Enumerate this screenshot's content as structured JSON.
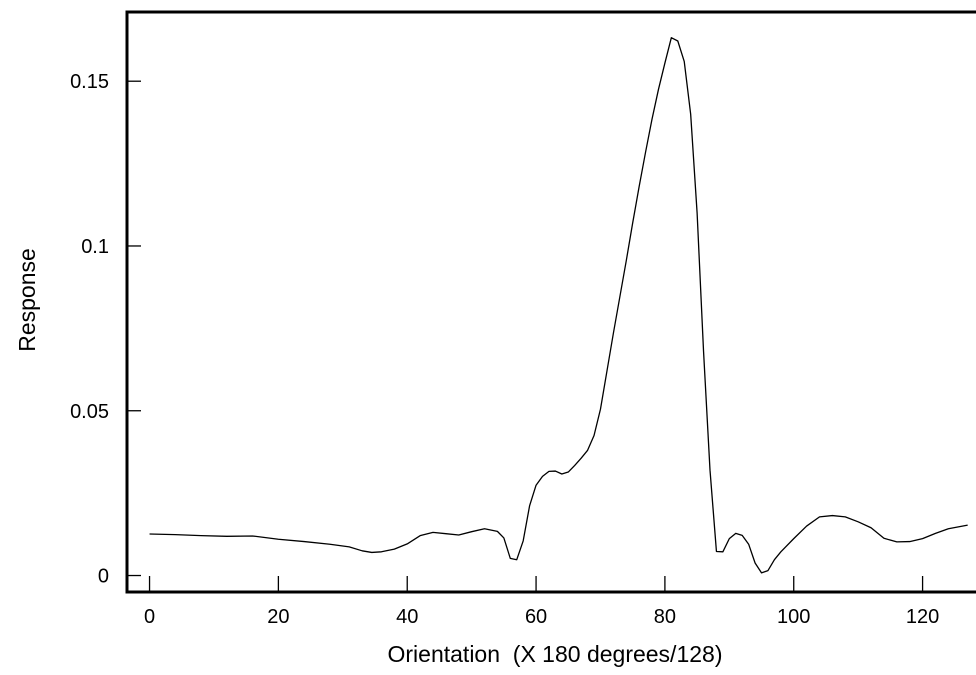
{
  "chart_data": {
    "type": "line",
    "title": "",
    "xlabel": "Orientation  (X 180 degrees/128)",
    "ylabel": "Response",
    "xlim": [
      -3.5,
      130
    ],
    "ylim": [
      -0.005,
      0.171
    ],
    "x_ticks": [
      0,
      20,
      40,
      60,
      80,
      100,
      120
    ],
    "x_tick_labels": [
      "0",
      "20",
      "40",
      "60",
      "80",
      "100",
      "120"
    ],
    "y_ticks": [
      0,
      0.05,
      0.1,
      0.15
    ],
    "y_tick_labels": [
      "0",
      "0.05",
      "0.1",
      "0.15"
    ],
    "grid": false,
    "legend": "none",
    "line_color": "#000000",
    "series": [
      {
        "x": [
          0,
          4,
          8,
          12,
          16,
          20,
          24,
          28,
          31,
          33,
          34.5,
          36,
          38,
          40,
          42,
          44,
          46,
          48,
          50,
          52,
          54,
          55,
          56,
          57,
          58,
          59,
          60,
          61,
          62,
          63,
          64,
          65,
          66,
          67,
          68,
          69,
          70,
          71,
          72,
          73,
          74,
          75,
          76,
          77,
          78,
          79,
          80,
          81,
          82,
          83,
          84,
          85,
          86,
          87,
          88,
          89,
          90,
          91,
          92,
          93,
          94,
          95,
          96,
          97,
          98,
          100,
          102,
          104,
          106,
          108,
          110,
          112,
          114,
          116,
          118,
          120,
          122,
          124,
          127
        ],
        "y": [
          0.0126,
          0.0124,
          0.0121,
          0.0119,
          0.012,
          0.011,
          0.0103,
          0.0095,
          0.0087,
          0.0075,
          0.007,
          0.0072,
          0.008,
          0.0096,
          0.0121,
          0.0131,
          0.0127,
          0.0123,
          0.0133,
          0.0142,
          0.0134,
          0.0114,
          0.0052,
          0.0048,
          0.0105,
          0.0212,
          0.0274,
          0.0301,
          0.0316,
          0.0317,
          0.0308,
          0.0314,
          0.0334,
          0.0356,
          0.038,
          0.0425,
          0.0505,
          0.062,
          0.0735,
          0.0845,
          0.0955,
          0.107,
          0.118,
          0.1285,
          0.1385,
          0.1475,
          0.1555,
          0.1632,
          0.1622,
          0.156,
          0.14,
          0.11,
          0.068,
          0.032,
          0.0073,
          0.0072,
          0.0112,
          0.0128,
          0.0122,
          0.0095,
          0.0038,
          0.0008,
          0.0015,
          0.0048,
          0.0072,
          0.0112,
          0.015,
          0.0178,
          0.0182,
          0.0178,
          0.0163,
          0.0145,
          0.0113,
          0.0102,
          0.0103,
          0.0112,
          0.0128,
          0.0142,
          0.0153
        ]
      }
    ]
  }
}
